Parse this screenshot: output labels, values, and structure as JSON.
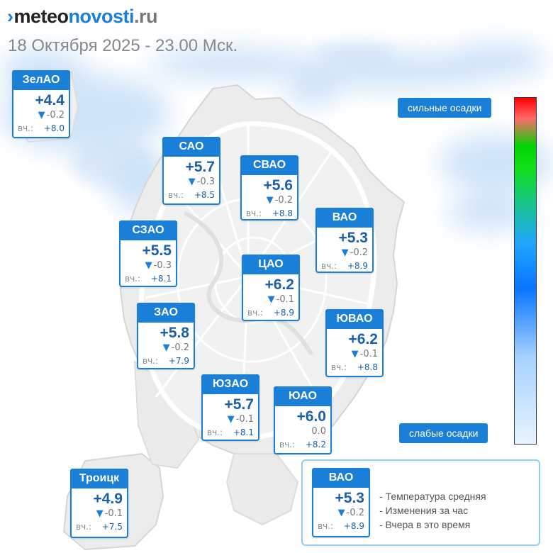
{
  "header": {
    "logo": {
      "mark": "›",
      "part1": "meteo",
      "part2": "novosti",
      "part3": ".ru"
    },
    "subtitle": "18 Октября 2025 - 23.00 Мск."
  },
  "colors": {
    "accent": "#1a7fd6",
    "temp_text": "#1a5fa8",
    "legend_border": "#96ccec"
  },
  "icons": {
    "change_down": "▼"
  },
  "prev_label": "вч.:",
  "districts": [
    {
      "name": "ЗелАО",
      "temp": "+4.4",
      "change_icon": "▼",
      "change": "-0.2",
      "prev": "+8.0"
    },
    {
      "name": "САО",
      "temp": "+5.7",
      "change_icon": "▼",
      "change": "-0.3",
      "prev": "+8.5"
    },
    {
      "name": "СВАО",
      "temp": "+5.6",
      "change_icon": "▼",
      "change": "-0.2",
      "prev": "+8.8"
    },
    {
      "name": "ВАО",
      "temp": "+5.3",
      "change_icon": "▼",
      "change": "-0.2",
      "prev": "+8.9"
    },
    {
      "name": "СЗАО",
      "temp": "+5.5",
      "change_icon": "▼",
      "change": "-0.3",
      "prev": "+8.1"
    },
    {
      "name": "ЦАО",
      "temp": "+6.2",
      "change_icon": "▼",
      "change": "-0.1",
      "prev": "+8.9"
    },
    {
      "name": "ЗАО",
      "temp": "+5.8",
      "change_icon": "▼",
      "change": "-0.2",
      "prev": "+7.9"
    },
    {
      "name": "ЮВАО",
      "temp": "+6.2",
      "change_icon": "▼",
      "change": "-0.1",
      "prev": "+8.8"
    },
    {
      "name": "ЮЗАО",
      "temp": "+5.7",
      "change_icon": "▼",
      "change": "-0.1",
      "prev": "+8.1"
    },
    {
      "name": "ЮАО",
      "temp": "+6.0",
      "change_icon": "",
      "change": "0.0",
      "prev": "+8.2"
    },
    {
      "name": "Троицк",
      "temp": "+4.9",
      "change_icon": "▼",
      "change": "-0.1",
      "prev": "+7.5"
    }
  ],
  "scale": {
    "top_label": "сильные осадки",
    "bottom_label": "слабые осадки",
    "colors": [
      "#ff0000",
      "#00d400",
      "#0a74ff",
      "#e8f4ff"
    ]
  },
  "legend": {
    "example": {
      "name": "ВАО",
      "temp": "+5.3",
      "change_icon": "▼",
      "change": "-0.2",
      "prev": "+8.9"
    },
    "lines": [
      "- Температура средняя",
      "- Изменения за час",
      "- Вчера в это время"
    ]
  }
}
